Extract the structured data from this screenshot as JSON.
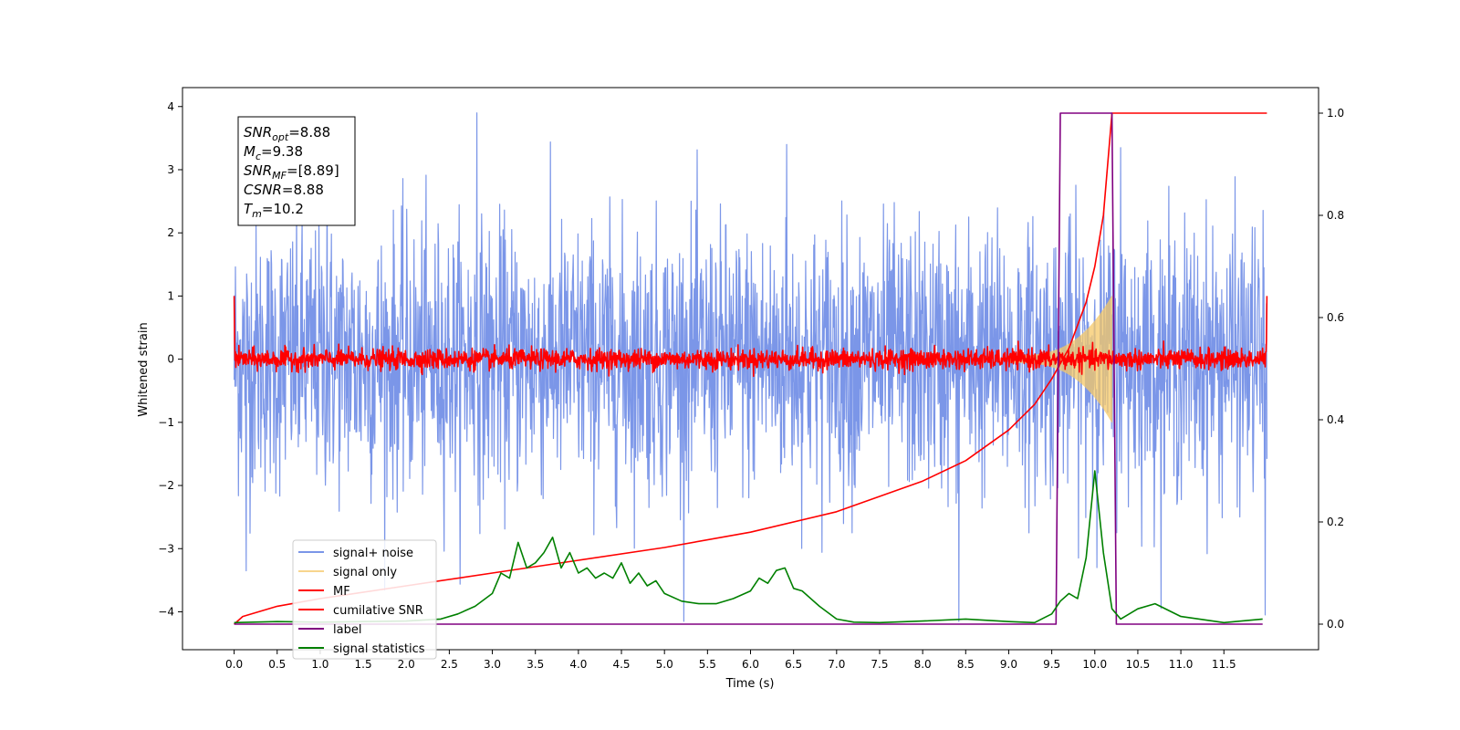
{
  "chart_data": {
    "type": "line",
    "title": "",
    "xlabel": "Time (s)",
    "ylabel": "Whitened strain",
    "y2label": "",
    "xlim": [
      -0.6,
      12.6
    ],
    "ylim": [
      -4.6,
      4.3
    ],
    "y2lim": [
      -0.05,
      1.05
    ],
    "x_ticks": [
      0.0,
      0.5,
      1.0,
      1.5,
      2.0,
      2.5,
      3.0,
      3.5,
      4.0,
      4.5,
      5.0,
      5.5,
      6.0,
      6.5,
      7.0,
      7.5,
      8.0,
      8.5,
      9.0,
      9.5,
      10.0,
      10.5,
      11.0,
      11.5
    ],
    "x_tick_labels": [
      "0.0",
      "0.5",
      "1.0",
      "1.5",
      "2.0",
      "2.5",
      "3.0",
      "3.5",
      "4.0",
      "4.5",
      "5.0",
      "5.5",
      "6.0",
      "6.5",
      "7.0",
      "7.5",
      "8.0",
      "8.5",
      "9.0",
      "9.5",
      "10.0",
      "10.5",
      "11.0",
      "11.5"
    ],
    "y_ticks": [
      -4,
      -3,
      -2,
      -1,
      0,
      1,
      2,
      3,
      4
    ],
    "y_tick_labels": [
      "−4",
      "−3",
      "−2",
      "−1",
      "0",
      "1",
      "2",
      "3",
      "4"
    ],
    "y2_ticks": [
      0.0,
      0.2,
      0.4,
      0.6,
      0.8,
      1.0
    ],
    "y2_tick_labels": [
      "0.0",
      "0.2",
      "0.4",
      "0.6",
      "0.8",
      "1.0"
    ],
    "grid": false,
    "legend_position": "lower-left",
    "annotation": {
      "lines": [
        {
          "sym": "SNR",
          "sub": "opt",
          "value": "=8.88"
        },
        {
          "sym": "M",
          "sub": "c",
          "value": "=9.38"
        },
        {
          "sym": "SNR",
          "sub": "MF",
          "value": "=[8.89]"
        },
        {
          "sym": "CSNR",
          "sub": "",
          "value": "=8.88"
        },
        {
          "sym": "T",
          "sub": "m",
          "value": "=10.2"
        }
      ]
    },
    "series": [
      {
        "name": "signal+ noise",
        "color": "#7b96e8",
        "axis": "left",
        "kind": "noise",
        "x_range": [
          0.0,
          12.0
        ],
        "sigma": 1.05,
        "peak_max": 3.9,
        "peak_min": -4.15
      },
      {
        "name": "signal only",
        "color": "#f6c867",
        "axis": "left",
        "kind": "chirp",
        "x_range": [
          9.0,
          10.2
        ],
        "amplitude_start": 0.05,
        "amplitude_end": 1.0
      },
      {
        "name": "MF",
        "color": "#ff0000",
        "axis": "left",
        "kind": "noise",
        "x_range": [
          0.0,
          12.0
        ],
        "sigma": 0.08,
        "edge_values": [
          1.0,
          1.0
        ]
      },
      {
        "name": "cumilative SNR",
        "color": "#ff0000",
        "axis": "right",
        "kind": "curve",
        "x": [
          0.0,
          0.1,
          0.5,
          1.0,
          2.0,
          3.0,
          4.0,
          5.0,
          6.0,
          7.0,
          8.0,
          8.5,
          9.0,
          9.3,
          9.5,
          9.7,
          9.9,
          10.0,
          10.1,
          10.2,
          12.0
        ],
        "y": [
          0.0,
          0.015,
          0.035,
          0.05,
          0.075,
          0.1,
          0.125,
          0.15,
          0.18,
          0.22,
          0.28,
          0.32,
          0.38,
          0.43,
          0.48,
          0.54,
          0.63,
          0.7,
          0.8,
          1.0,
          1.0
        ]
      },
      {
        "name": "label",
        "color": "#800080",
        "axis": "right",
        "kind": "step",
        "x": [
          0.0,
          9.55,
          9.6,
          10.2,
          10.25,
          11.95
        ],
        "y": [
          0.0,
          0.0,
          1.0,
          1.0,
          0.0,
          0.0
        ]
      },
      {
        "name": "signal statistics",
        "color": "#008000",
        "axis": "right",
        "kind": "curve",
        "x": [
          0.0,
          0.5,
          1.0,
          1.5,
          2.0,
          2.4,
          2.6,
          2.8,
          3.0,
          3.1,
          3.2,
          3.3,
          3.4,
          3.5,
          3.6,
          3.7,
          3.8,
          3.9,
          4.0,
          4.1,
          4.2,
          4.3,
          4.4,
          4.5,
          4.6,
          4.7,
          4.8,
          4.9,
          5.0,
          5.2,
          5.4,
          5.6,
          5.8,
          6.0,
          6.1,
          6.2,
          6.3,
          6.4,
          6.5,
          6.6,
          6.8,
          7.0,
          7.2,
          7.5,
          8.0,
          8.5,
          9.0,
          9.3,
          9.5,
          9.6,
          9.7,
          9.8,
          9.9,
          10.0,
          10.1,
          10.2,
          10.3,
          10.5,
          10.7,
          11.0,
          11.5,
          11.95
        ],
        "y": [
          0.003,
          0.005,
          0.004,
          0.005,
          0.006,
          0.01,
          0.02,
          0.035,
          0.06,
          0.1,
          0.09,
          0.16,
          0.11,
          0.12,
          0.14,
          0.17,
          0.11,
          0.14,
          0.1,
          0.11,
          0.09,
          0.1,
          0.09,
          0.12,
          0.08,
          0.1,
          0.075,
          0.085,
          0.06,
          0.045,
          0.04,
          0.04,
          0.05,
          0.065,
          0.09,
          0.08,
          0.105,
          0.11,
          0.07,
          0.065,
          0.035,
          0.01,
          0.004,
          0.003,
          0.006,
          0.01,
          0.005,
          0.003,
          0.02,
          0.045,
          0.06,
          0.05,
          0.13,
          0.3,
          0.14,
          0.03,
          0.01,
          0.03,
          0.04,
          0.015,
          0.003,
          0.01
        ]
      }
    ]
  }
}
